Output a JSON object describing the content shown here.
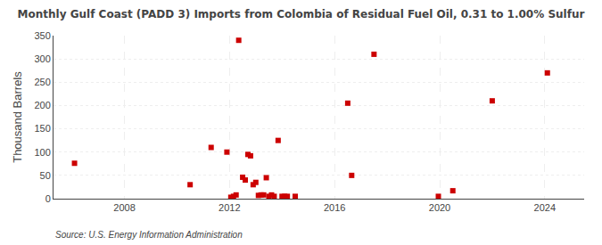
{
  "chart_data": {
    "type": "scatter",
    "title": "Monthly Gulf Coast (PADD 3) Imports from Colombia of Residual Fuel Oil, 0.31 to 1.00% Sulfur",
    "ylabel": "Thousand Barrels",
    "annotations": [
      "Source: U.S. Energy Information Administration"
    ],
    "x": [
      2006.1,
      2010.5,
      2011.3,
      2011.9,
      2012.05,
      2012.15,
      2012.25,
      2012.35,
      2012.5,
      2012.6,
      2012.7,
      2012.8,
      2012.9,
      2013.0,
      2013.1,
      2013.2,
      2013.3,
      2013.4,
      2013.5,
      2013.6,
      2013.7,
      2013.85,
      2014.0,
      2014.1,
      2014.2,
      2014.5,
      2016.5,
      2016.65,
      2017.5,
      2019.95,
      2020.5,
      2022.0,
      2024.1
    ],
    "values": [
      76,
      30,
      110,
      100,
      3,
      5,
      8,
      340,
      46,
      40,
      95,
      92,
      30,
      35,
      7,
      8,
      8,
      45,
      5,
      8,
      5,
      125,
      5,
      5,
      5,
      5,
      205,
      50,
      310,
      5,
      17,
      210,
      270
    ],
    "color": "#cc0000",
    "marker": "square",
    "xlim": [
      2005.3,
      2025.5
    ],
    "xticks": [
      2008,
      2012,
      2016,
      2020,
      2024
    ],
    "ylim": [
      0,
      350
    ],
    "yticks": [
      0,
      50,
      100,
      150,
      200,
      250,
      300,
      350
    ],
    "grid": true
  }
}
